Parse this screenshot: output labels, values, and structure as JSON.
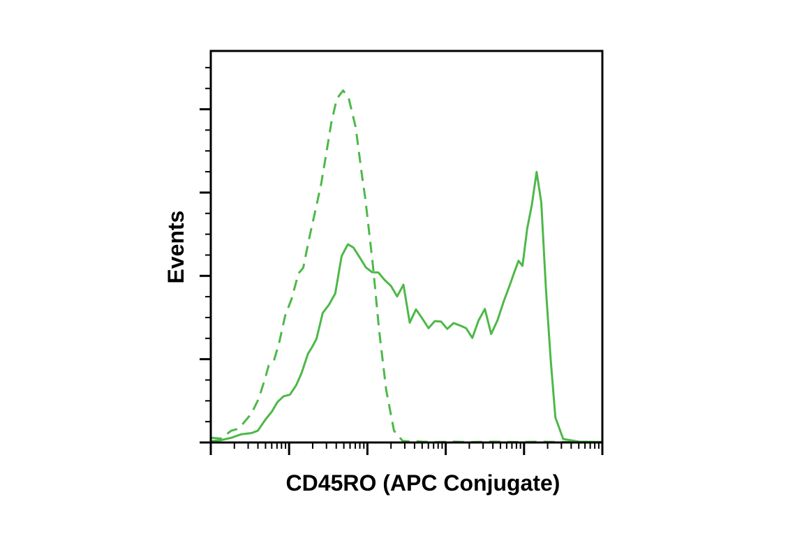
{
  "chart_data": {
    "type": "line",
    "xlabel": "CD45RO (APC Conjugate)",
    "ylabel": "Events",
    "xscale": "log",
    "x_decades": 5,
    "xlim": [
      0,
      5
    ],
    "ylim": [
      0,
      100
    ],
    "tick_labels_shown": false,
    "grid": false,
    "legend": "none",
    "colors": {
      "series": "#4db848",
      "axis": "#000000"
    },
    "series": [
      {
        "line_style": "dashed",
        "x": [
          0,
          0.13,
          0.26,
          0.33,
          0.41,
          0.52,
          0.61,
          0.69,
          0.74,
          0.81,
          0.87,
          0.95,
          1.03,
          1.12,
          1.18,
          1.26,
          1.34,
          1.41,
          1.47,
          1.54,
          1.61,
          1.69,
          1.76,
          1.85,
          1.93,
          1.97,
          2.0,
          2.07,
          2.15,
          2.24,
          2.34,
          2.45,
          2.55,
          2.62,
          2.7,
          2.85,
          3.1,
          3.3,
          3.6,
          3.9,
          4.2,
          4.5,
          4.8,
          5.0
        ],
        "y": [
          1.2,
          1.0,
          3.0,
          3.4,
          4.8,
          7.4,
          11.1,
          16.1,
          19.7,
          21.2,
          25.2,
          32.4,
          36.6,
          43.2,
          44.6,
          52.5,
          59.6,
          66.1,
          73.2,
          81.8,
          87.8,
          89.9,
          88.0,
          80.5,
          68.3,
          62.8,
          57.6,
          45.2,
          28.6,
          13.4,
          3.0,
          0.4,
          0.2,
          0.3,
          0.2,
          0.1,
          0.2,
          0.1,
          0.2,
          0.1,
          0.2,
          0.1,
          0.1,
          0.1
        ]
      },
      {
        "line_style": "solid",
        "x": [
          0,
          0.13,
          0.26,
          0.39,
          0.52,
          0.6,
          0.7,
          0.78,
          0.85,
          0.93,
          1.01,
          1.09,
          1.16,
          1.24,
          1.3,
          1.35,
          1.43,
          1.51,
          1.59,
          1.67,
          1.75,
          1.82,
          1.9,
          1.98,
          2.06,
          2.14,
          2.22,
          2.3,
          2.38,
          2.46,
          2.54,
          2.62,
          2.7,
          2.78,
          2.86,
          2.94,
          3.02,
          3.1,
          3.18,
          3.26,
          3.34,
          3.42,
          3.5,
          3.58,
          3.66,
          3.74,
          3.82,
          3.88,
          3.93,
          3.98,
          4.04,
          4.1,
          4.16,
          4.22,
          4.28,
          4.34,
          4.4,
          4.5,
          4.7,
          5.0
        ],
        "y": [
          0.3,
          0.6,
          1.2,
          2.1,
          2.4,
          3.0,
          5.9,
          7.9,
          10.3,
          11.8,
          12.2,
          14.6,
          17.8,
          22.6,
          24.6,
          26.5,
          33.1,
          35.2,
          38.1,
          47.6,
          50.6,
          49.8,
          47.3,
          44.7,
          43.5,
          43.4,
          41.5,
          40.0,
          37.3,
          40.3,
          30.6,
          34.0,
          31.7,
          29.2,
          31.0,
          30.9,
          29.0,
          30.5,
          29.9,
          29.2,
          26.7,
          31.2,
          34.1,
          27.7,
          31.2,
          36.0,
          40.3,
          43.7,
          46.4,
          45.1,
          54.6,
          60.7,
          69.1,
          61.3,
          39.1,
          21.3,
          6.4,
          0.9,
          0.2,
          0.1
        ]
      }
    ]
  }
}
